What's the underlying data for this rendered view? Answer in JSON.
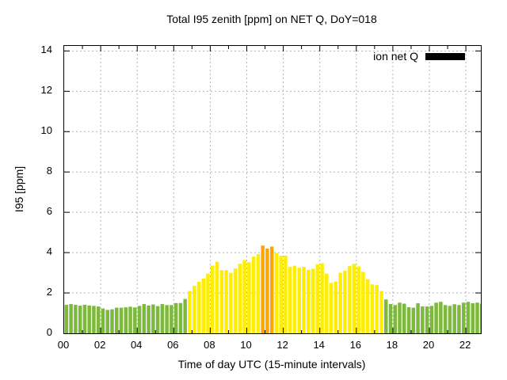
{
  "title": "Total I95 zenith [ppm] on NET Q, DoY=018",
  "legend": {
    "label": "ion net Q",
    "swatch_color": "#000000"
  },
  "axes": {
    "ylabel": "I95 [ppm]",
    "xlabel": "Time of day UTC (15-minute intervals)"
  },
  "chart_data": {
    "type": "bar",
    "title": "Total I95 zenith [ppm] on NET Q, DoY=018",
    "xlabel": "Time of day UTC (15-minute intervals)",
    "ylabel": "I95 [ppm]",
    "series_name": "ion net Q",
    "interval_minutes": 15,
    "grid": true,
    "legend_position": "top-right-inside",
    "ylim": [
      0,
      14.25
    ],
    "x_hours_max": 22.82,
    "y_ticks": [
      0,
      2,
      4,
      6,
      8,
      10,
      12,
      14
    ],
    "x_tick_hours": [
      0,
      2,
      4,
      6,
      8,
      10,
      12,
      14,
      16,
      18,
      20,
      22
    ],
    "x_tick_labels": [
      "00",
      "02",
      "04",
      "06",
      "08",
      "10",
      "12",
      "14",
      "16",
      "18",
      "20",
      "22"
    ],
    "palette": {
      "g": "#7cb93d",
      "y": "#ffee00",
      "o": "#ffa500"
    },
    "color_key": {
      "g": "green",
      "y": "yellow",
      "o": "orange"
    },
    "times": [
      "00:00",
      "00:15",
      "00:30",
      "00:45",
      "01:00",
      "01:15",
      "01:30",
      "01:45",
      "02:00",
      "02:15",
      "02:30",
      "02:45",
      "03:00",
      "03:15",
      "03:30",
      "03:45",
      "04:00",
      "04:15",
      "04:30",
      "04:45",
      "05:00",
      "05:15",
      "05:30",
      "05:45",
      "06:00",
      "06:15",
      "06:30",
      "06:45",
      "07:00",
      "07:15",
      "07:30",
      "07:45",
      "08:00",
      "08:15",
      "08:30",
      "08:45",
      "09:00",
      "09:15",
      "09:30",
      "09:45",
      "10:00",
      "10:15",
      "10:30",
      "10:45",
      "11:00",
      "11:15",
      "11:30",
      "11:45",
      "12:00",
      "12:15",
      "12:30",
      "12:45",
      "13:00",
      "13:15",
      "13:30",
      "13:45",
      "14:00",
      "14:15",
      "14:30",
      "14:45",
      "15:00",
      "15:15",
      "15:30",
      "15:45",
      "16:00",
      "16:15",
      "16:30",
      "16:45",
      "17:00",
      "17:15",
      "17:30",
      "17:45",
      "18:00",
      "18:15",
      "18:30",
      "18:45",
      "19:00",
      "19:15",
      "19:30",
      "19:45",
      "20:00",
      "20:15",
      "20:30",
      "20:45",
      "21:00",
      "21:15",
      "21:30",
      "21:45",
      "22:00",
      "22:15",
      "22:30",
      "22:45"
    ],
    "values": [
      1.41,
      1.45,
      1.41,
      1.37,
      1.41,
      1.38,
      1.36,
      1.33,
      1.23,
      1.16,
      1.19,
      1.27,
      1.27,
      1.29,
      1.32,
      1.28,
      1.36,
      1.45,
      1.38,
      1.43,
      1.35,
      1.45,
      1.4,
      1.4,
      1.5,
      1.5,
      1.7,
      2.1,
      2.35,
      2.55,
      2.72,
      2.96,
      3.36,
      3.55,
      3.13,
      3.13,
      3.0,
      3.22,
      3.45,
      3.63,
      3.53,
      3.8,
      3.92,
      4.35,
      4.2,
      4.3,
      3.98,
      3.85,
      3.85,
      3.3,
      3.35,
      3.25,
      3.3,
      3.15,
      3.2,
      3.42,
      3.47,
      2.96,
      2.5,
      2.57,
      3.0,
      3.1,
      3.33,
      3.45,
      3.32,
      3.05,
      2.68,
      2.43,
      2.39,
      2.1,
      1.68,
      1.45,
      1.4,
      1.52,
      1.47,
      1.29,
      1.27,
      1.49,
      1.33,
      1.33,
      1.36,
      1.52,
      1.56,
      1.4,
      1.36,
      1.44,
      1.4,
      1.52,
      1.56,
      1.49,
      1.52,
      1.47
    ],
    "colors": [
      "g",
      "g",
      "g",
      "g",
      "g",
      "g",
      "g",
      "g",
      "g",
      "g",
      "g",
      "g",
      "g",
      "g",
      "g",
      "g",
      "g",
      "g",
      "g",
      "g",
      "g",
      "g",
      "g",
      "g",
      "g",
      "g",
      "g",
      "y",
      "y",
      "y",
      "y",
      "y",
      "y",
      "y",
      "y",
      "y",
      "y",
      "y",
      "y",
      "y",
      "y",
      "y",
      "y",
      "o",
      "o",
      "o",
      "y",
      "y",
      "y",
      "y",
      "y",
      "y",
      "y",
      "y",
      "y",
      "y",
      "y",
      "y",
      "y",
      "y",
      "y",
      "y",
      "y",
      "y",
      "y",
      "y",
      "y",
      "y",
      "y",
      "y",
      "g",
      "g",
      "g",
      "g",
      "g",
      "g",
      "g",
      "g",
      "g",
      "g",
      "g",
      "g",
      "g",
      "g",
      "g",
      "g",
      "g",
      "g",
      "g",
      "g",
      "g",
      "g"
    ]
  }
}
